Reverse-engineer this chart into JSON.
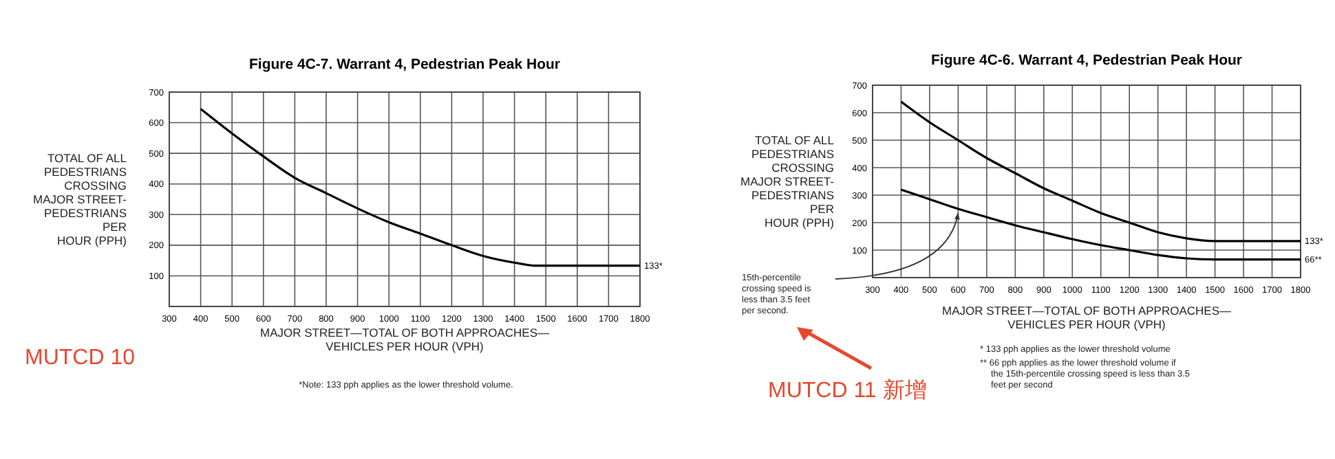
{
  "chart_data": [
    {
      "type": "line",
      "title": "Figure 4C-7.  Warrant 4, Pedestrian Peak Hour",
      "xlabel": "MAJOR STREET—TOTAL OF BOTH APPROACHES—VEHICLES PER HOUR (VPH)",
      "ylabel": "TOTAL OF ALL PEDESTRIANS CROSSING MAJOR STREET-PEDESTRIANS PER HOUR (PPH)",
      "xlim": [
        300,
        1800
      ],
      "xticks": [
        300,
        400,
        500,
        600,
        700,
        800,
        900,
        1000,
        1100,
        1200,
        1300,
        1400,
        1500,
        1600,
        1700,
        1800
      ],
      "ylim": [
        0,
        700
      ],
      "yticks": [
        100,
        200,
        300,
        400,
        500,
        600,
        700
      ],
      "grid": true,
      "marker": "none",
      "line_style": "solid",
      "series": [
        {
          "name": "133*",
          "color": "#000000",
          "x": [
            400,
            500,
            600,
            700,
            800,
            900,
            1000,
            1100,
            1200,
            1300,
            1400,
            1470,
            1800
          ],
          "values": [
            645,
            565,
            490,
            420,
            370,
            320,
            275,
            238,
            200,
            165,
            143,
            133,
            133
          ]
        }
      ],
      "annotations": [
        "*Note: 133 pph applies as the lower threshold volume.",
        "MUTCD 10"
      ]
    },
    {
      "type": "line",
      "title": "Figure 4C-6.  Warrant 4, Pedestrian Peak Hour",
      "xlabel": "MAJOR STREET—TOTAL OF BOTH APPROACHES—VEHICLES PER HOUR (VPH)",
      "ylabel": "TOTAL OF ALL PEDESTRIANS CROSSING MAJOR STREET-PEDESTRIANS PER HOUR (PPH)",
      "xlim": [
        300,
        1800
      ],
      "xticks": [
        300,
        400,
        500,
        600,
        700,
        800,
        900,
        1000,
        1100,
        1200,
        1300,
        1400,
        1500,
        1600,
        1700,
        1800
      ],
      "ylim": [
        0,
        700
      ],
      "yticks": [
        100,
        200,
        300,
        400,
        500,
        600,
        700
      ],
      "grid": true,
      "marker": "none",
      "line_style": "solid",
      "series": [
        {
          "name": "133*",
          "color": "#000000",
          "x": [
            400,
            500,
            600,
            700,
            800,
            900,
            1000,
            1100,
            1200,
            1300,
            1400,
            1500,
            1800
          ],
          "values": [
            640,
            565,
            500,
            435,
            380,
            325,
            280,
            235,
            200,
            165,
            143,
            133,
            133
          ]
        },
        {
          "name": "66**",
          "color": "#000000",
          "x": [
            400,
            500,
            600,
            700,
            800,
            900,
            1000,
            1100,
            1200,
            1300,
            1400,
            1500,
            1800
          ],
          "values": [
            320,
            285,
            250,
            220,
            190,
            165,
            140,
            118,
            100,
            82,
            70,
            66,
            66
          ]
        }
      ],
      "annotations": [
        "15th-percentile crossing speed is less than 3.5 feet per second.",
        "* 133 pph applies as the lower threshold volume",
        "** 66 pph applies as the lower threshold volume if the 15th-percentile crossing speed is less than 3.5 feet per second",
        "MUTCD 11 新增"
      ]
    }
  ]
}
